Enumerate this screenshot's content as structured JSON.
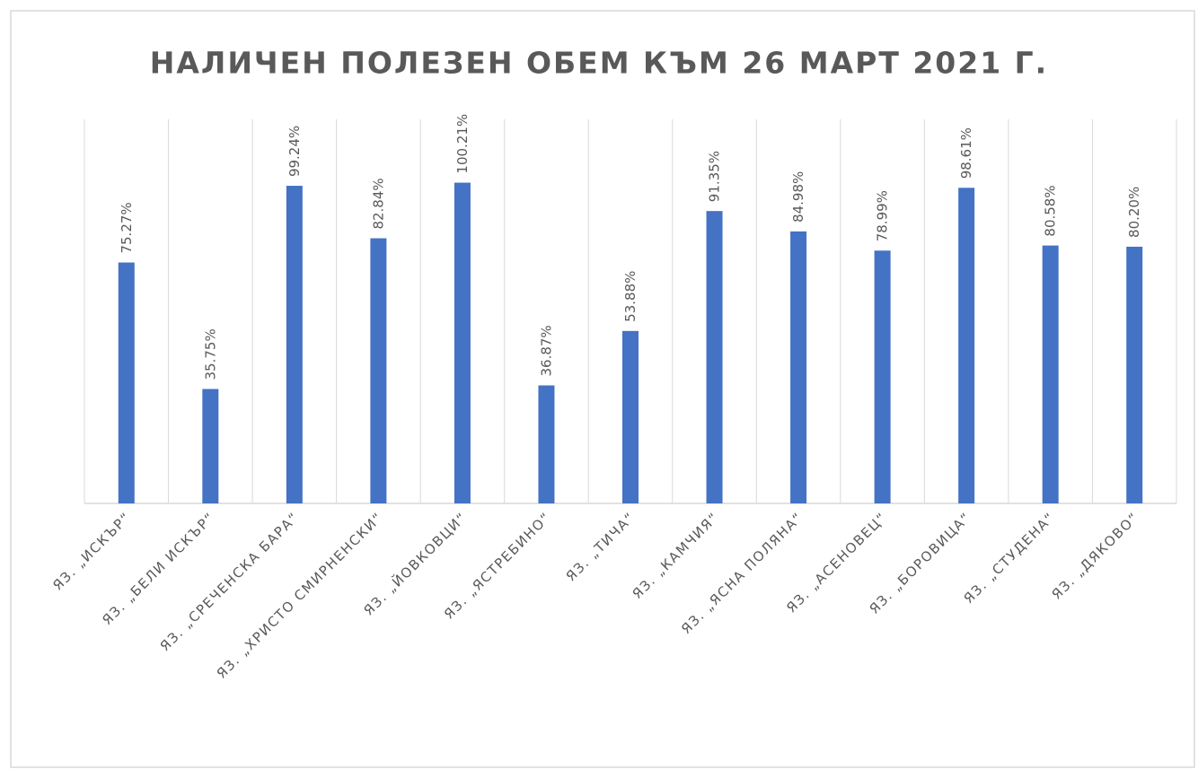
{
  "chart_data": {
    "type": "bar",
    "title": "НАЛИЧЕН ПОЛЕЗЕН ОБЕМ КЪМ 26 МАРТ 2021 Г.",
    "categories": [
      "ЯЗ. „ИСКЪР“",
      "ЯЗ. „БЕЛИ ИСКЪР“",
      "ЯЗ. „СРЕЧЕНСКА БАРА“",
      "ЯЗ. „ХРИСТО СМИРНЕНСКИ“",
      "ЯЗ. „ЙОВКОВЦИ“",
      "ЯЗ. „ЯСТРЕБИНО“",
      "ЯЗ. „ТИЧА“",
      "ЯЗ. „КАМЧИЯ“",
      "ЯЗ. „ЯСНА ПОЛЯНА“",
      "ЯЗ. „АСЕНОВЕЦ“",
      "ЯЗ. „БОРОВИЦА“",
      "ЯЗ. „СТУДЕНА“",
      "ЯЗ. „ДЯКОВО“"
    ],
    "values": [
      75.27,
      35.75,
      99.24,
      82.84,
      100.21,
      36.87,
      53.88,
      91.35,
      84.98,
      78.99,
      98.61,
      80.58,
      80.2
    ],
    "value_labels": [
      "75.27%",
      "35.75%",
      "99.24%",
      "82.84%",
      "100.21%",
      "36.87%",
      "53.88%",
      "91.35%",
      "84.98%",
      "78.99%",
      "98.61%",
      "80.58%",
      "80.20%"
    ],
    "color": "#4472c4",
    "ylim": [
      0,
      120
    ]
  }
}
